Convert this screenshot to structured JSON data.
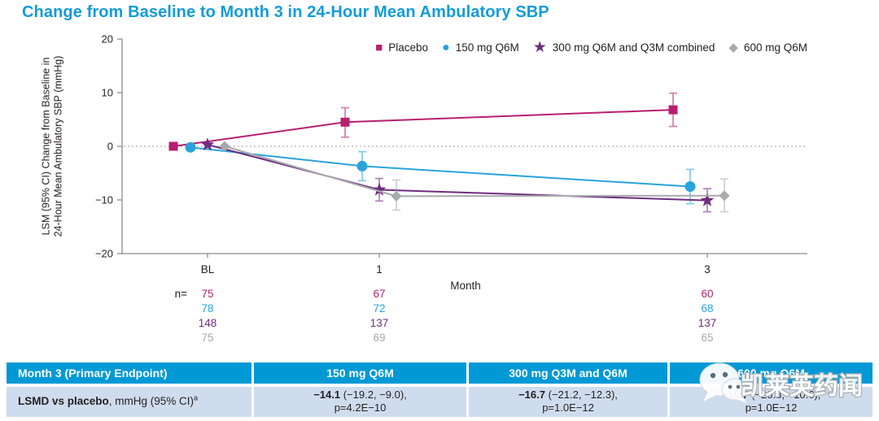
{
  "title": "Change from Baseline to Month 3 in 24-Hour Mean Ambulatory SBP",
  "colors": {
    "title_blue": "#149bd9",
    "table_header_bg": "#0099d6",
    "table_row_bg": "#cfdcee",
    "axis_gray": "#8c8c8c",
    "placebo": "#b91f6e",
    "dose_150": "#29a3dc",
    "dose_300": "#6f2c80",
    "dose_600": "#a8aaad"
  },
  "chart_data": {
    "type": "line",
    "title": "Change from Baseline to Month 3 in 24-Hour Mean Ambulatory SBP",
    "xlabel": "Month",
    "ylabel": "LSM (95% CI) Change from Baseline in 24-Hour Mean Ambulatory SBP (mmHg)",
    "ylabel_lines": [
      "LSM (95% CI) Change from Baseline in",
      "24-Hour Mean Ambulatory SBP (mmHg)"
    ],
    "ylim": [
      -20,
      20
    ],
    "yticks": [
      20,
      10,
      0,
      -10,
      -20
    ],
    "x_categories": [
      "BL",
      "1",
      "3"
    ],
    "zero_reference_line": true,
    "legend_position": "top-right",
    "n_label": "n=",
    "series": [
      {
        "name": "Placebo",
        "marker": "square",
        "color": "#b91f6e",
        "values": [
          0,
          4.5,
          6.8
        ],
        "ci_low": [
          null,
          1.7,
          3.7
        ],
        "ci_high": [
          null,
          7.2,
          9.9
        ],
        "n": [
          75,
          67,
          60
        ]
      },
      {
        "name": "150 mg Q6M",
        "marker": "circle",
        "color": "#29a3dc",
        "values": [
          -0.2,
          -3.7,
          -7.5
        ],
        "ci_low": [
          null,
          -6.4,
          -10.7
        ],
        "ci_high": [
          null,
          -1.0,
          -4.3
        ],
        "n": [
          78,
          72,
          68
        ]
      },
      {
        "name": "300 mg Q6M and Q3M combined",
        "marker": "star",
        "color": "#6f2c80",
        "values": [
          0.3,
          -8.1,
          -10.1
        ],
        "ci_low": [
          null,
          -10.2,
          -12.2
        ],
        "ci_high": [
          null,
          -6.0,
          -7.9
        ],
        "n": [
          148,
          137,
          137
        ]
      },
      {
        "name": "600 mg Q6M",
        "marker": "diamond",
        "color": "#a8aaad",
        "values": [
          0,
          -9.3,
          -9.2
        ],
        "ci_low": [
          null,
          -11.9,
          -12.2
        ],
        "ci_high": [
          null,
          -6.3,
          -6.1
        ],
        "n": [
          75,
          69,
          65
        ]
      }
    ]
  },
  "endpoint_table": {
    "header": [
      "Month 3 (Primary Endpoint)",
      "150 mg Q6M",
      "300 mg Q3M and Q6M",
      "600 mg Q6M"
    ],
    "row": {
      "label_bold": "LSMD vs placebo",
      "label_rest": ", mmHg (95% CI)",
      "label_sup": "a",
      "values": [
        {
          "bold": "−14.1",
          "rest": " (−19.2, −9.0),",
          "p": "p=4.2E−10"
        },
        {
          "bold": "−16.7",
          "rest": " (−21.2, −12.3),",
          "p": "p=1.0E−12"
        },
        {
          "bold": "−15.7",
          "rest": " (−20.8, −10.6),",
          "p": "p=1.0E−12"
        }
      ]
    }
  },
  "watermark": {
    "text": "凯莱英药闻"
  }
}
